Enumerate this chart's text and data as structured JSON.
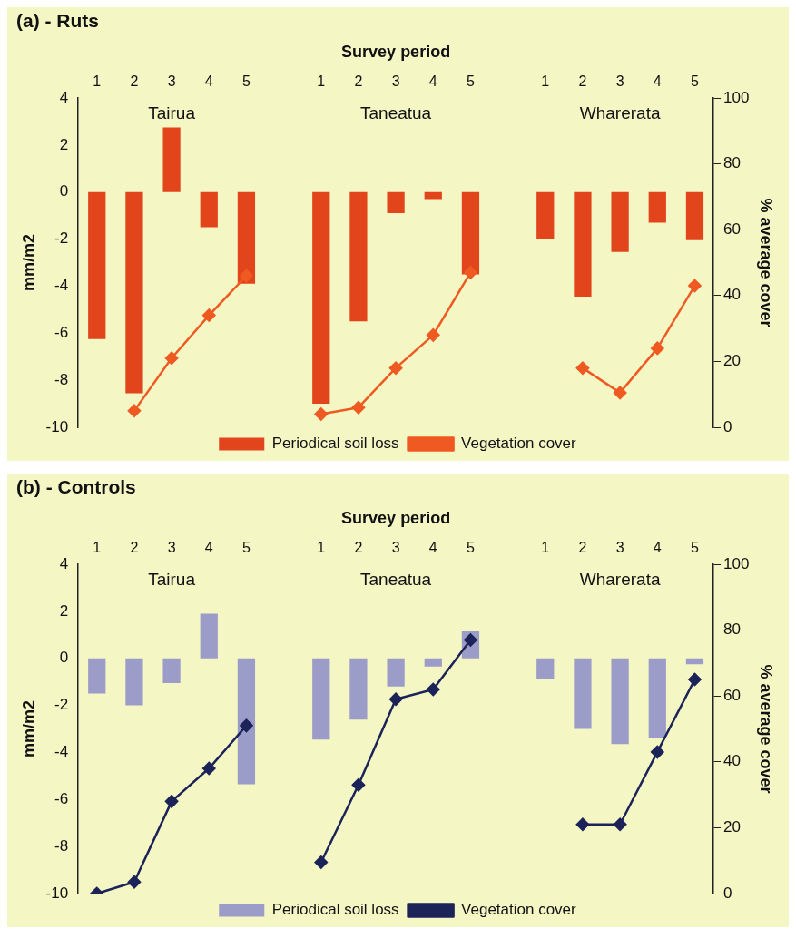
{
  "chart_data": [
    {
      "type": "bar",
      "title": "(a) - Ruts",
      "xlabel": "Survey period",
      "ylabel": "mm/m2",
      "y2label": "% average cover",
      "categories": [
        "1",
        "2",
        "3",
        "4",
        "5",
        null,
        "1",
        "2",
        "3",
        "4",
        "5",
        null,
        "1",
        "2",
        "3",
        "4",
        "5"
      ],
      "series": [
        {
          "name": "Periodical soil loss",
          "color": "#e2441c",
          "values": [
            -6.25,
            -8.55,
            2.75,
            -1.5,
            -3.9,
            null,
            -9.0,
            -5.5,
            -0.9,
            -0.3,
            -3.5,
            null,
            -2.0,
            -4.45,
            -2.55,
            -1.3,
            -2.05
          ]
        },
        {
          "name": "Vegetation cover",
          "type": "line",
          "axis": "y2",
          "color": "#ee5a22",
          "values": [
            null,
            5,
            21,
            34,
            46,
            null,
            4,
            6,
            18,
            28,
            47,
            null,
            null,
            18,
            10.5,
            24,
            43
          ]
        }
      ],
      "annotations": [
        "Tairua",
        "Taneatua",
        "Wharerata"
      ],
      "ylim": [
        -10,
        4
      ],
      "yticks": [
        -10,
        -8,
        -6,
        -4,
        -2,
        0,
        2,
        4
      ],
      "y2lim": [
        0,
        100
      ],
      "y2ticks": [
        0,
        20,
        40,
        60,
        80,
        100
      ],
      "legend": "bottom",
      "marker": "diamond"
    },
    {
      "type": "bar",
      "title": "(b) - Controls",
      "xlabel": "Survey period",
      "ylabel": "mm/m2",
      "y2label": "% average cover",
      "categories": [
        "1",
        "2",
        "3",
        "4",
        "5",
        null,
        "1",
        "2",
        "3",
        "4",
        "5",
        null,
        "1",
        "2",
        "3",
        "4",
        "5"
      ],
      "series": [
        {
          "name": "Periodical soil loss",
          "color": "#9c9cc8",
          "values": [
            -1.5,
            -2.0,
            -1.05,
            1.9,
            -5.35,
            null,
            -3.45,
            -2.6,
            -1.2,
            -0.35,
            1.15,
            null,
            -0.9,
            -3.0,
            -3.65,
            -3.4,
            -0.25
          ]
        },
        {
          "name": "Vegetation cover",
          "type": "line",
          "axis": "y2",
          "color": "#1c2358",
          "values": [
            0,
            3.5,
            28,
            38,
            51,
            null,
            9.5,
            33,
            59,
            62,
            77,
            null,
            null,
            21,
            21,
            43,
            65
          ]
        }
      ],
      "annotations": [
        "Tairua",
        "Taneatua",
        "Wharerata"
      ],
      "ylim": [
        -10,
        4
      ],
      "yticks": [
        -10,
        -8,
        -6,
        -4,
        -2,
        0,
        2,
        4
      ],
      "y2lim": [
        0,
        100
      ],
      "y2ticks": [
        0,
        20,
        40,
        60,
        80,
        100
      ],
      "legend": "bottom",
      "marker": "diamond"
    }
  ]
}
